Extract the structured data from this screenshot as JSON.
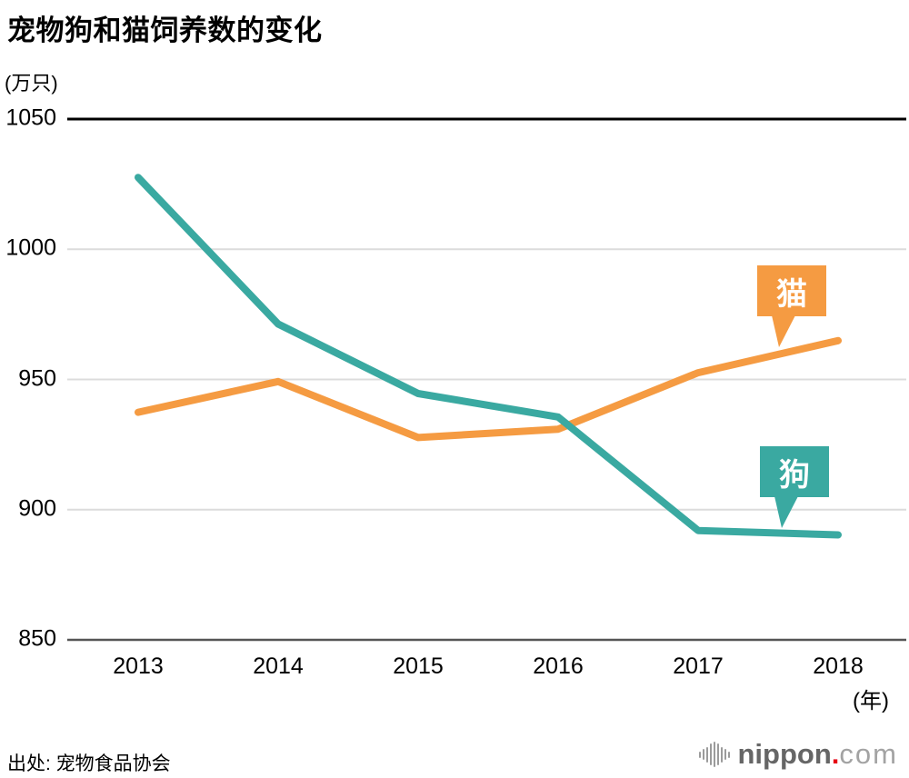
{
  "title": "宠物狗和猫饲养数的变化",
  "unit_label": "(万只)",
  "x_axis_unit": "(年)",
  "source": {
    "label": "出处: 宠物食品协会"
  },
  "logo": {
    "name": "nippon",
    "dot": ".",
    "tld": "com",
    "dot_color": "#e60012"
  },
  "chart_data": {
    "type": "line",
    "title": "宠物狗和猫饲养数的变化",
    "ylabel": "(万只)",
    "xlabel": "(年)",
    "x": [
      2013,
      2014,
      2015,
      2016,
      2017,
      2018
    ],
    "series": [
      {
        "name": "狗",
        "color": "#3AA9A1",
        "values": [
          1027.6,
          971.3,
          944.6,
          935.6,
          892.0,
          890.3
        ]
      },
      {
        "name": "猫",
        "color": "#F59B42",
        "values": [
          937.4,
          949.2,
          927.7,
          930.9,
          952.6,
          964.9
        ]
      }
    ],
    "ylim": [
      850,
      1050
    ],
    "y_ticks": [
      1050,
      1000,
      950,
      900,
      850
    ],
    "grid": true,
    "legend": "callout-bubbles-on-lines"
  }
}
